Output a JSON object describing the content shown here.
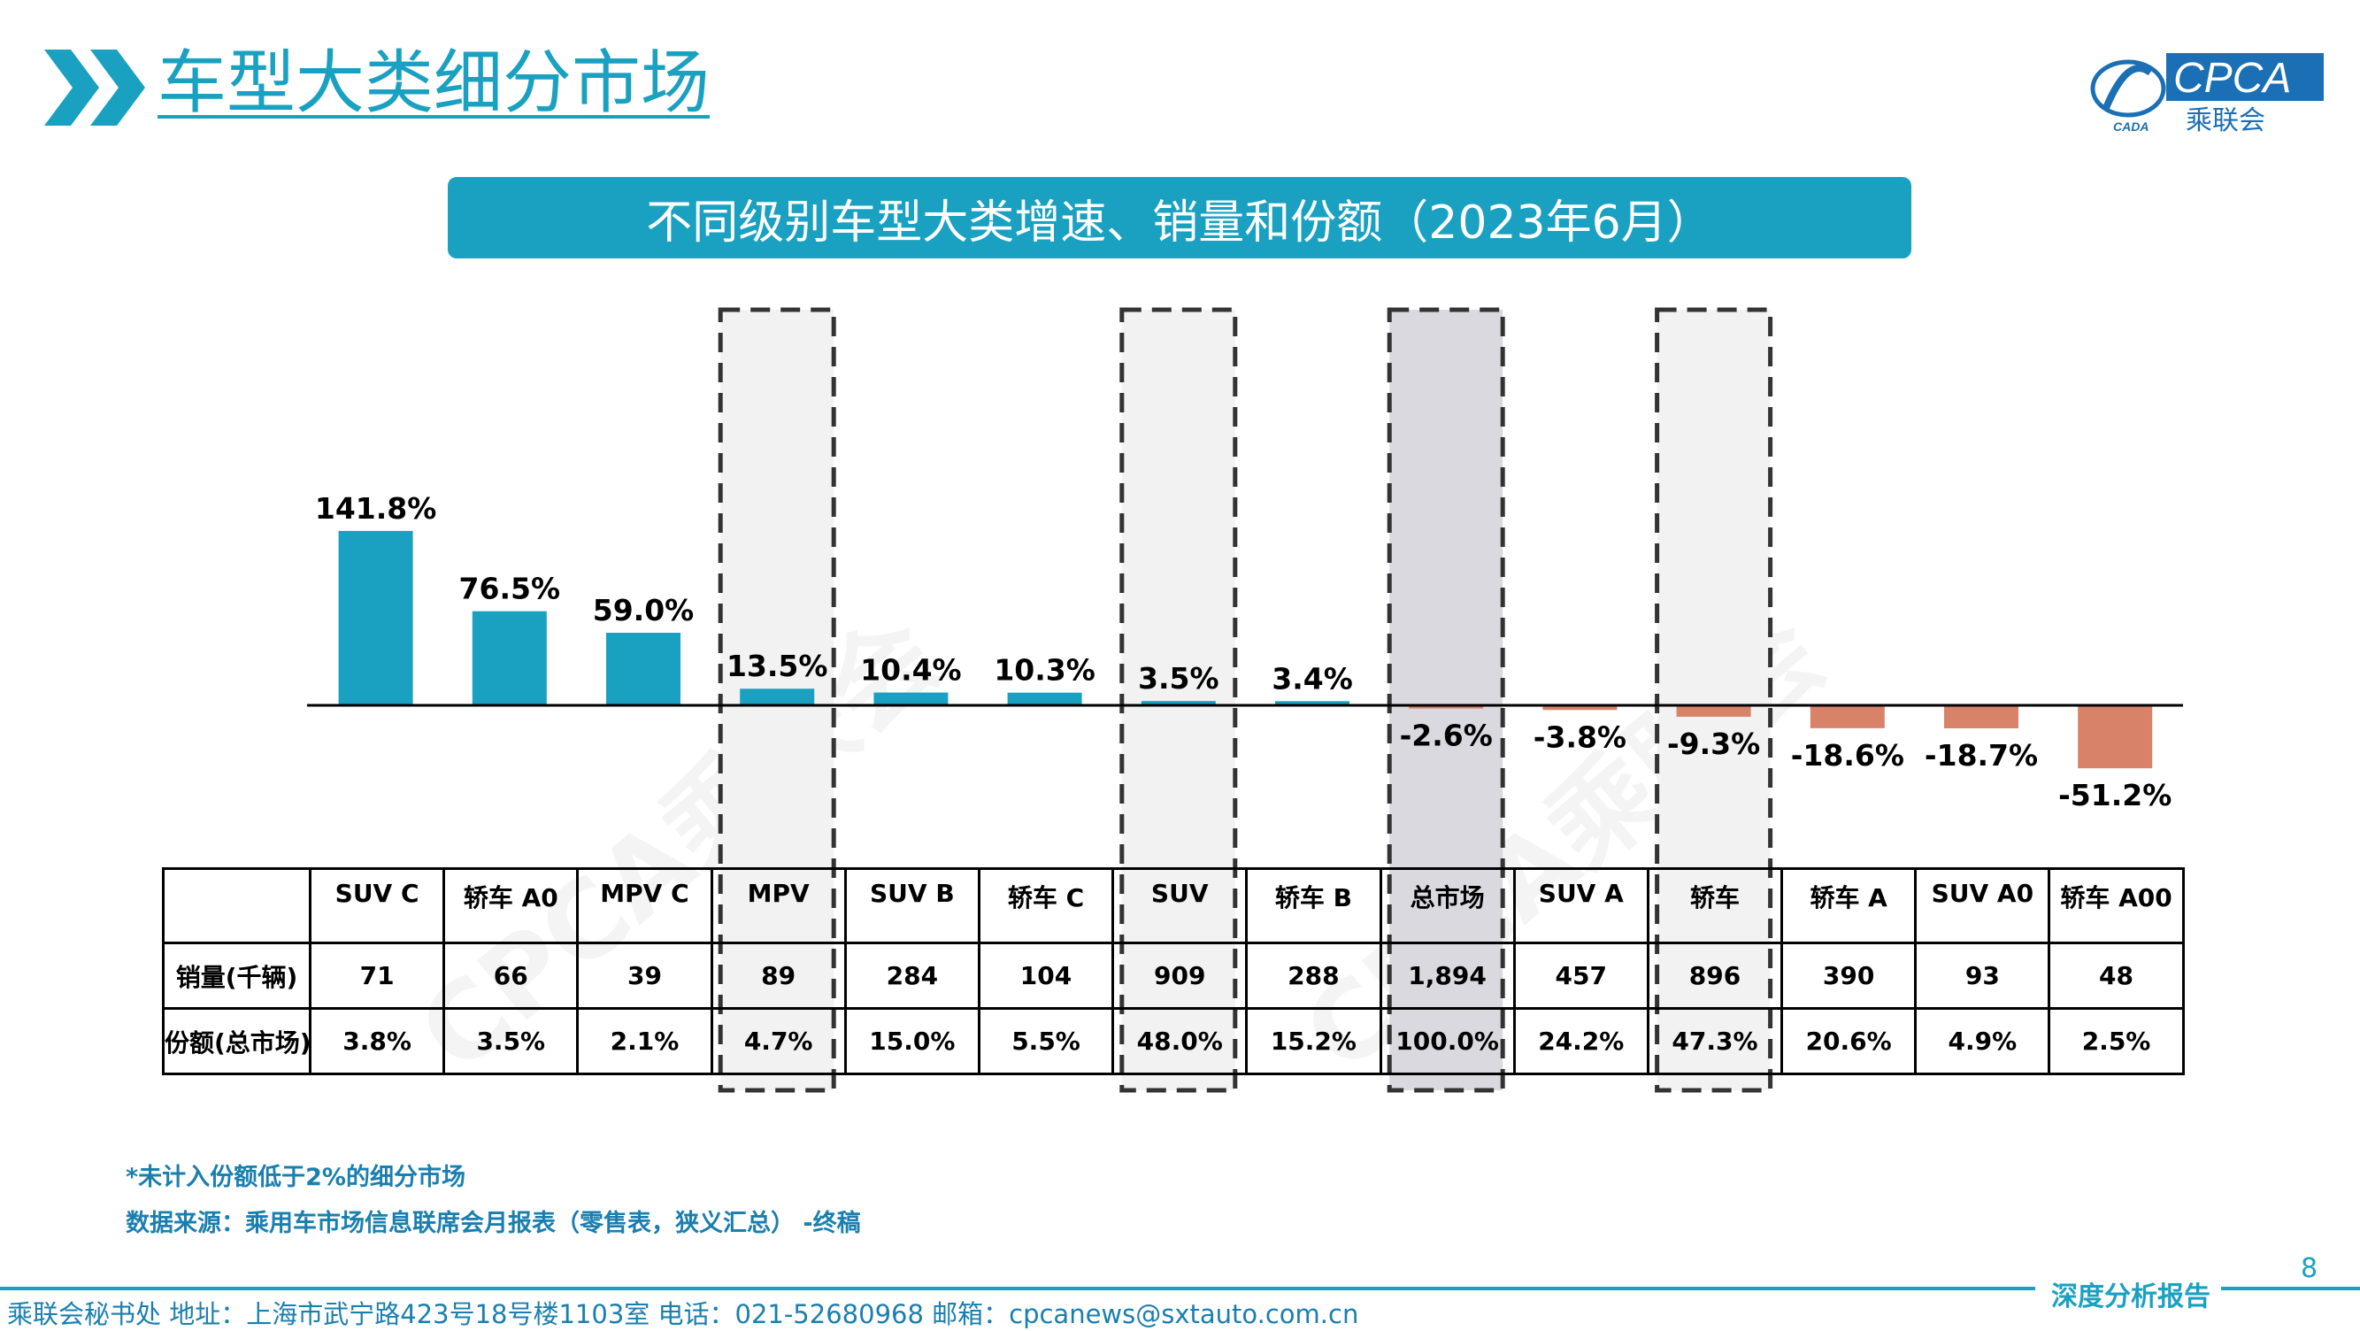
{
  "page": {
    "title": "车型大类细分市场",
    "chart_heading": "不同级别车型大类增速、销量和份额（2023年6月）",
    "logo_text": "CPCA",
    "logo_sub": "乘联会",
    "logo_left_mark": "CADA",
    "watermark": "CPCA乘联会",
    "footnote": "*未计入份额低于2%的细分市场",
    "source": "数据来源：乘用车市场信息联席会月报表（零售表，狭义汇总） -终稿",
    "page_number": "8",
    "report_tag": "深度分析报告",
    "footer_contact": "乘联会秘书处  地址：上海市武宁路423号18号楼1103室  电话：021-52680968  邮箱：cpcanews@sxtauto.com.cn"
  },
  "colors": {
    "accent": "#1aa1c1",
    "positive_bar": "#1aa1c1",
    "negative_bar": "#d9826a",
    "highlight_box": "#f2f2f2",
    "total_box": "#d9d9df",
    "text_blue": "#1a7faf"
  },
  "icons": [
    "double-chevron-icon",
    "cpca-logo-icon"
  ],
  "chart_data": {
    "type": "bar",
    "categories": [
      "SUV C",
      "轿车 A0",
      "MPV C",
      "MPV",
      "SUV B",
      "轿车 C",
      "SUV",
      "轿车 B",
      "总市场",
      "SUV A",
      "轿车",
      "轿车 A",
      "SUV A0",
      "轿车 A00"
    ],
    "values": [
      141.8,
      76.5,
      59.0,
      13.5,
      10.4,
      10.3,
      3.5,
      3.4,
      -2.6,
      -3.8,
      -9.3,
      -18.6,
      -18.7,
      -51.2
    ],
    "value_labels": [
      "141.8%",
      "76.5%",
      "59.0%",
      "13.5%",
      "10.4%",
      "10.3%",
      "3.5%",
      "3.4%",
      "-2.6%",
      "-3.8%",
      "-9.3%",
      "-18.6%",
      "-18.7%",
      "-51.2%"
    ],
    "unit": "%",
    "highlighted_categories": [
      "MPV",
      "SUV",
      "总市场",
      "轿车"
    ],
    "table": {
      "row_labels": [
        "销量(千辆)",
        "份额(总市场)"
      ],
      "sales": [
        "71",
        "66",
        "39",
        "89",
        "284",
        "104",
        "909",
        "288",
        "1,894",
        "457",
        "896",
        "390",
        "93",
        "48"
      ],
      "share": [
        "3.8%",
        "3.5%",
        "2.1%",
        "4.7%",
        "15.0%",
        "5.5%",
        "48.0%",
        "15.2%",
        "100.0%",
        "24.2%",
        "47.3%",
        "20.6%",
        "4.9%",
        "2.5%"
      ]
    }
  }
}
